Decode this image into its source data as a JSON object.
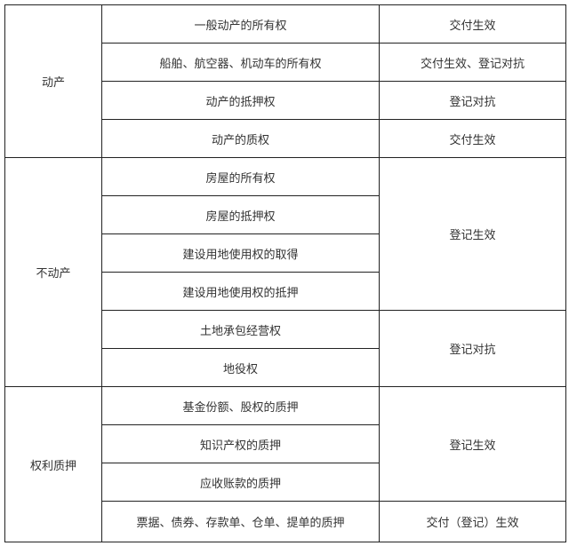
{
  "groups": [
    {
      "category": "动产",
      "rows": [
        {
          "right": "一般动产的所有权",
          "effect": "交付生效"
        },
        {
          "right": "船舶、航空器、机动车的所有权",
          "effect": "交付生效、登记对抗"
        },
        {
          "right": "动产的抵押权",
          "effect": "登记对抗"
        },
        {
          "right": "动产的质权",
          "effect": "交付生效"
        }
      ]
    },
    {
      "category": "不动产",
      "rows": [
        {
          "right": "房屋的所有权",
          "effect": "登记生效"
        },
        {
          "right": "房屋的抵押权"
        },
        {
          "right": "建设用地使用权的取得"
        },
        {
          "right": "建设用地使用权的抵押"
        },
        {
          "right": "土地承包经营权",
          "effect": "登记对抗"
        },
        {
          "right": "地役权"
        }
      ]
    },
    {
      "category": "权利质押",
      "rows": [
        {
          "right": "基金份额、股权的质押",
          "effect": "登记生效"
        },
        {
          "right": "知识产权的质押"
        },
        {
          "right": "应收账款的质押"
        },
        {
          "right": "票据、债券、存款单、仓单、提单的质押",
          "effect": "交付（登记）生效"
        }
      ]
    }
  ]
}
